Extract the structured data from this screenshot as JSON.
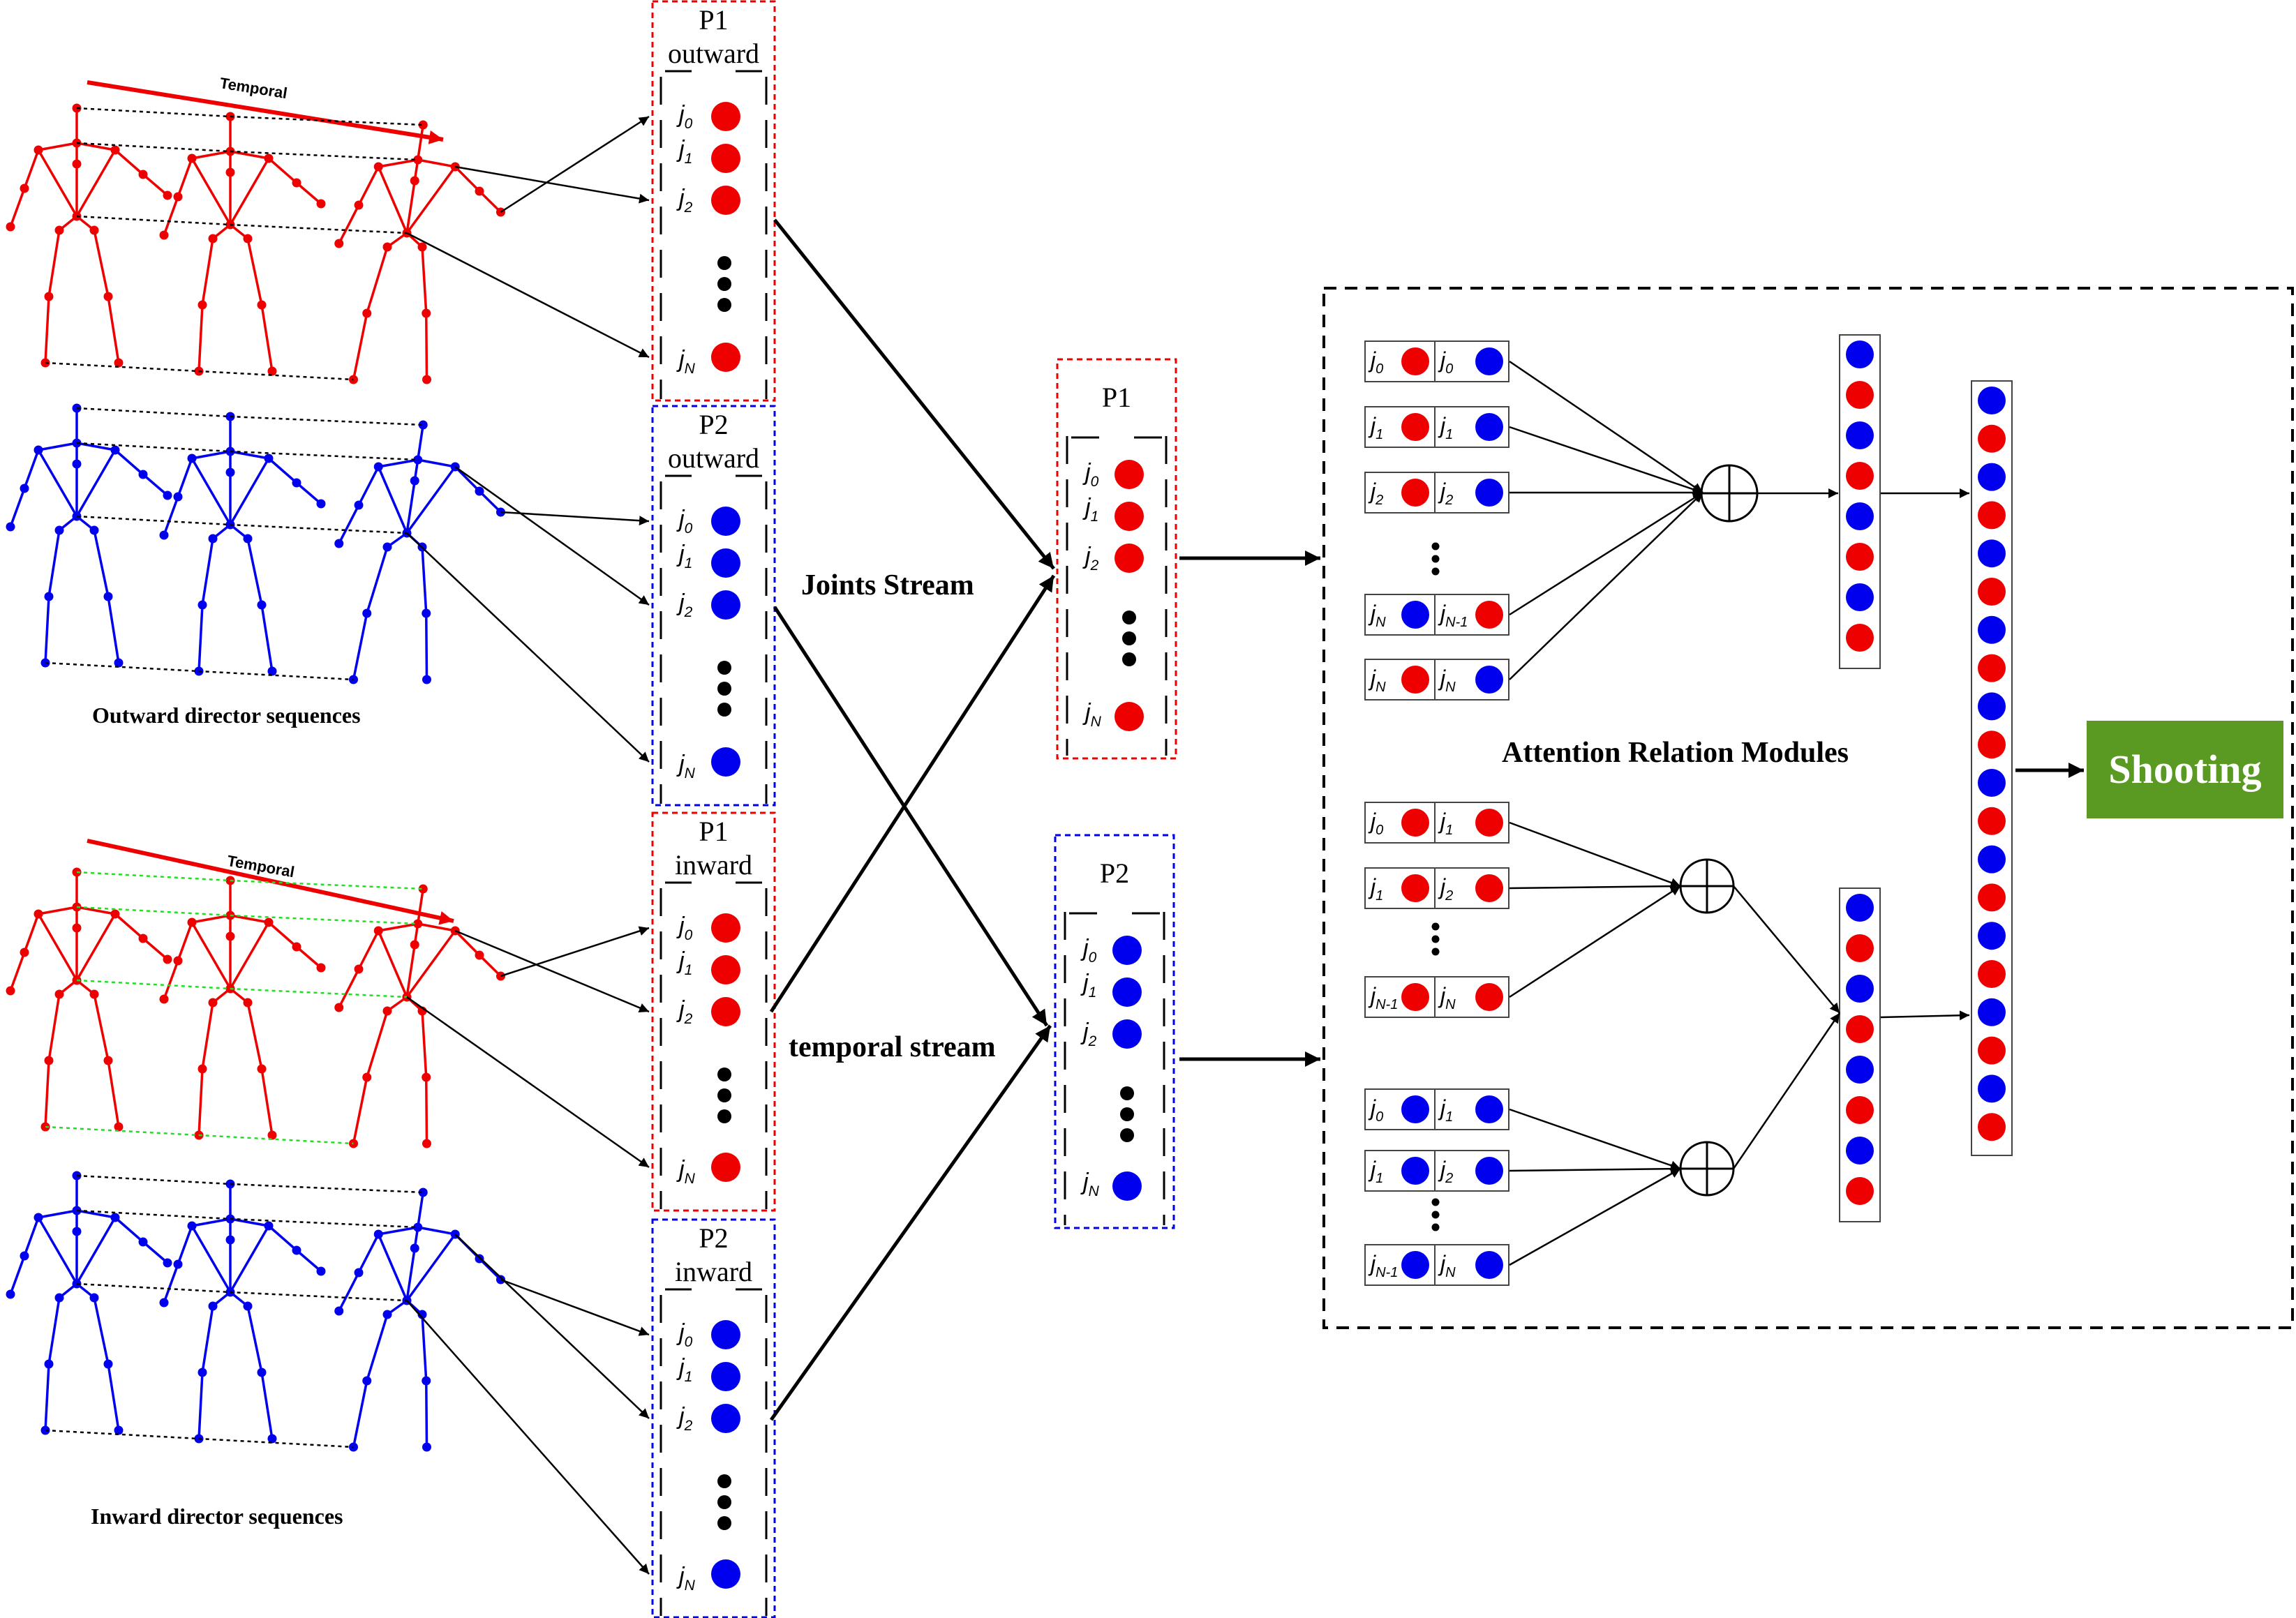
{
  "colors": {
    "red": "#ee0000",
    "blue": "#0000ee",
    "green_guide": "#22dd22",
    "shooting_bg": "#5a9a22",
    "shooting_text": "#ffffff"
  },
  "temporal_arrows": [
    "Temporal",
    "Temporal"
  ],
  "sequence_captions": {
    "outward": "Outward director sequences",
    "inward": "Inward director sequences"
  },
  "input_panels": [
    {
      "person": "P1",
      "direction": "outward",
      "color": "red"
    },
    {
      "person": "P2",
      "direction": "outward",
      "color": "blue"
    },
    {
      "person": "P1",
      "direction": "inward",
      "color": "red"
    },
    {
      "person": "P2",
      "direction": "inward",
      "color": "blue"
    }
  ],
  "joint_labels": {
    "j0": "j",
    "j0_sub": "0",
    "j1": "j",
    "j1_sub": "1",
    "j2": "j",
    "j2_sub": "2",
    "jN": "j",
    "jN_sub": "N",
    "jN1_sub": "N-1"
  },
  "streams": {
    "joints": "Joints Stream",
    "temporal": "temporal stream"
  },
  "mid_panels": [
    {
      "person": "P1",
      "color": "red"
    },
    {
      "person": "P2",
      "color": "blue"
    }
  ],
  "attention": {
    "title": "Attention Relation Modules",
    "pairs_top": [
      {
        "a": "0",
        "ca": "red",
        "b": "0",
        "cb": "blue"
      },
      {
        "a": "1",
        "ca": "red",
        "b": "1",
        "cb": "blue"
      },
      {
        "a": "2",
        "ca": "red",
        "b": "2",
        "cb": "blue"
      },
      {
        "a": "N",
        "ca": "blue",
        "b": "N-1",
        "cb": "red"
      },
      {
        "a": "N",
        "ca": "red",
        "b": "N",
        "cb": "blue"
      }
    ],
    "pairs_mid": [
      {
        "a": "0",
        "ca": "red",
        "b": "1",
        "cb": "red"
      },
      {
        "a": "1",
        "ca": "red",
        "b": "2",
        "cb": "red"
      },
      {
        "a": "N-1",
        "ca": "red",
        "b": "N",
        "cb": "red"
      }
    ],
    "pairs_bot": [
      {
        "a": "0",
        "ca": "blue",
        "b": "1",
        "cb": "blue"
      },
      {
        "a": "1",
        "ca": "blue",
        "b": "2",
        "cb": "blue"
      },
      {
        "a": "N-1",
        "ca": "blue",
        "b": "N",
        "cb": "blue"
      }
    ],
    "column_top": [
      "blue",
      "red",
      "blue",
      "red",
      "blue",
      "red",
      "blue",
      "red"
    ],
    "column_mid": [
      "blue",
      "red",
      "blue",
      "red",
      "blue",
      "red",
      "blue",
      "red"
    ],
    "column_final": [
      "blue",
      "red",
      "blue",
      "red",
      "blue",
      "red",
      "blue",
      "red",
      "blue",
      "red",
      "blue",
      "red",
      "blue",
      "red",
      "blue",
      "red",
      "blue",
      "red",
      "blue",
      "red"
    ]
  },
  "output": {
    "label": "Shooting"
  }
}
